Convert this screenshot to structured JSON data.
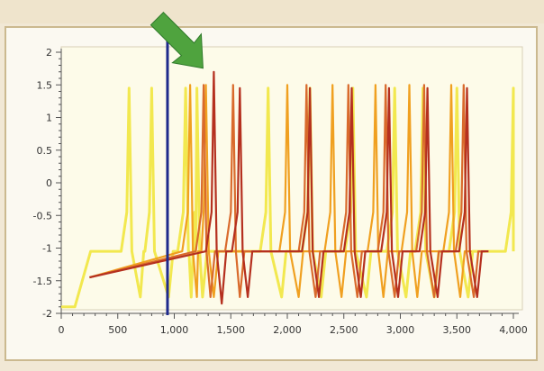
{
  "chart_data": {
    "type": "line",
    "title": "",
    "xlabel": "",
    "ylabel": "",
    "xlim": [
      0,
      4000
    ],
    "ylim": [
      -2,
      2
    ],
    "x_ticks": [
      0,
      500,
      1000,
      1500,
      2000,
      2500,
      3000,
      3500,
      4000
    ],
    "x_tick_labels": [
      "0",
      "500",
      "1,000",
      "1,500",
      "2,000",
      "2,500",
      "3,000",
      "3,500",
      "4,000"
    ],
    "y_ticks": [
      -2,
      -1.5,
      -1,
      -0.5,
      0,
      0.5,
      1,
      1.5,
      2
    ],
    "y_tick_labels": [
      "-2",
      "-1.5",
      "-1",
      "-0.5",
      "0",
      "0.5",
      "1",
      "1.5",
      "2"
    ],
    "grid": false,
    "legend": "none",
    "marker_line": {
      "x": 940,
      "color": "#1f2a8c"
    },
    "arrow_annotation": {
      "pointing_at_x": 1350,
      "pointing_at_y": 1.7,
      "color": "#4fa33e"
    },
    "series": [
      {
        "color": "#f2e84f",
        "spike_peaks": [
          [
            600,
            1.45
          ],
          [
            800,
            1.45
          ],
          [
            1100,
            1.45
          ],
          [
            1200,
            1.45
          ],
          [
            1830,
            1.45
          ],
          [
            2200,
            1.45
          ],
          [
            2580,
            1.45
          ],
          [
            2950,
            1.45
          ],
          [
            3200,
            1.45
          ],
          [
            3500,
            1.45
          ],
          [
            4000,
            1.45
          ]
        ],
        "troughs": [
          [
            700,
            -1.75
          ],
          [
            950,
            -1.75
          ],
          [
            1150,
            -1.75
          ],
          [
            1250,
            -1.75
          ],
          [
            1950,
            -1.75
          ],
          [
            2300,
            -1.75
          ],
          [
            2700,
            -1.75
          ],
          [
            3050,
            -1.75
          ],
          [
            3300,
            -1.75
          ],
          [
            3600,
            -1.75
          ]
        ],
        "baseline": -1.05
      },
      {
        "color": "#f0a020",
        "spike_peaks": [
          [
            1140,
            1.5
          ],
          [
            1280,
            1.5
          ],
          [
            2000,
            1.5
          ],
          [
            2400,
            1.5
          ],
          [
            2780,
            1.5
          ],
          [
            3080,
            1.5
          ],
          [
            3450,
            1.5
          ]
        ],
        "troughs": [
          [
            1200,
            -1.75
          ],
          [
            1350,
            -1.75
          ],
          [
            2100,
            -1.75
          ],
          [
            2480,
            -1.75
          ],
          [
            2850,
            -1.75
          ],
          [
            3150,
            -1.75
          ],
          [
            3530,
            -1.75
          ]
        ],
        "baseline": -1.05
      },
      {
        "color": "#d96a2c",
        "spike_peaks": [
          [
            1260,
            1.5
          ],
          [
            1520,
            1.5
          ],
          [
            2170,
            1.5
          ],
          [
            2540,
            1.5
          ],
          [
            2870,
            1.5
          ],
          [
            3210,
            1.5
          ],
          [
            3560,
            1.5
          ]
        ],
        "troughs": [
          [
            1320,
            -1.75
          ],
          [
            1580,
            -1.75
          ],
          [
            2250,
            -1.75
          ],
          [
            2620,
            -1.75
          ],
          [
            2950,
            -1.75
          ],
          [
            3300,
            -1.75
          ],
          [
            3650,
            -1.75
          ]
        ],
        "baseline": -1.05
      },
      {
        "color": "#b5301f",
        "spike_peaks": [
          [
            1350,
            1.7
          ],
          [
            1580,
            1.45
          ],
          [
            2200,
            1.45
          ],
          [
            2570,
            1.45
          ],
          [
            2900,
            1.45
          ],
          [
            3240,
            1.45
          ],
          [
            3590,
            1.45
          ]
        ],
        "troughs": [
          [
            1420,
            -1.85
          ],
          [
            1650,
            -1.75
          ],
          [
            2280,
            -1.75
          ],
          [
            2650,
            -1.75
          ],
          [
            2980,
            -1.75
          ],
          [
            3330,
            -1.75
          ],
          [
            3680,
            -1.75
          ]
        ],
        "baseline": -1.05
      }
    ]
  }
}
